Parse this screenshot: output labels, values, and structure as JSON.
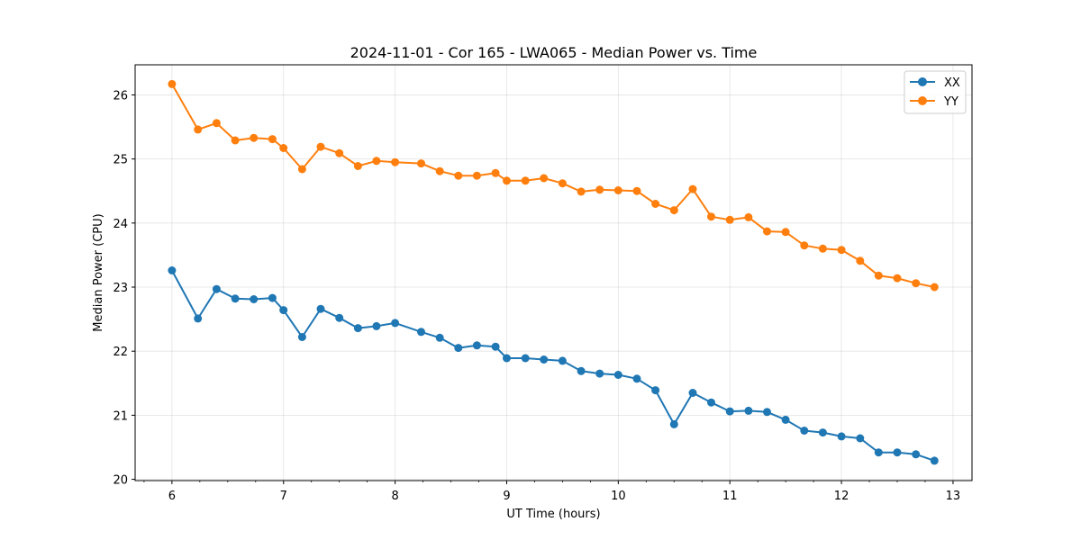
{
  "chart_data": {
    "type": "line",
    "title": "2024-11-01 - Cor 165 - LWA065 - Median Power vs. Time",
    "xlabel": "UT Time (hours)",
    "ylabel": "Median Power (CPU)",
    "xlim": [
      5.67,
      13.17
    ],
    "ylim": [
      19.98,
      26.47
    ],
    "xticks": [
      "6",
      "7",
      "8",
      "9",
      "10",
      "11",
      "12",
      "13"
    ],
    "yticks": [
      "20",
      "21",
      "22",
      "23",
      "24",
      "25",
      "26"
    ],
    "grid": true,
    "legend_position": "top-right",
    "series": [
      {
        "name": "XX",
        "color": "#1f77b4",
        "x": [
          6.0,
          6.233,
          6.4,
          6.567,
          6.733,
          6.9,
          7.0,
          7.167,
          7.333,
          7.5,
          7.667,
          7.833,
          8.0,
          8.233,
          8.4,
          8.567,
          8.733,
          8.9,
          9.0,
          9.167,
          9.333,
          9.5,
          9.667,
          9.833,
          10.0,
          10.167,
          10.333,
          10.5,
          10.667,
          10.833,
          11.0,
          11.167,
          11.333,
          11.5,
          11.667,
          11.833,
          12.0,
          12.167,
          12.333,
          12.5,
          12.667,
          12.833
        ],
        "y": [
          23.26,
          22.51,
          22.97,
          22.82,
          22.81,
          22.83,
          22.64,
          22.22,
          22.66,
          22.52,
          22.36,
          22.39,
          22.44,
          22.3,
          22.21,
          22.05,
          22.09,
          22.07,
          21.89,
          21.89,
          21.87,
          21.85,
          21.69,
          21.65,
          21.63,
          21.57,
          21.39,
          20.86,
          21.35,
          21.2,
          21.06,
          21.07,
          21.05,
          20.93,
          20.76,
          20.73,
          20.67,
          20.64,
          20.42,
          20.42,
          20.39,
          20.29
        ]
      },
      {
        "name": "YY",
        "color": "#ff7f0e",
        "x": [
          6.0,
          6.233,
          6.4,
          6.567,
          6.733,
          6.9,
          7.0,
          7.167,
          7.333,
          7.5,
          7.667,
          7.833,
          8.0,
          8.233,
          8.4,
          8.567,
          8.733,
          8.9,
          9.0,
          9.167,
          9.333,
          9.5,
          9.667,
          9.833,
          10.0,
          10.167,
          10.333,
          10.5,
          10.667,
          10.833,
          11.0,
          11.167,
          11.333,
          11.5,
          11.667,
          11.833,
          12.0,
          12.167,
          12.333,
          12.5,
          12.667,
          12.833
        ],
        "y": [
          26.17,
          25.46,
          25.56,
          25.29,
          25.33,
          25.31,
          25.17,
          24.84,
          25.19,
          25.09,
          24.89,
          24.97,
          24.95,
          24.93,
          24.81,
          24.74,
          24.74,
          24.78,
          24.66,
          24.66,
          24.7,
          24.62,
          24.49,
          24.52,
          24.51,
          24.5,
          24.3,
          24.2,
          24.53,
          24.1,
          24.05,
          24.09,
          23.87,
          23.86,
          23.65,
          23.6,
          23.58,
          23.41,
          23.18,
          23.14,
          23.06,
          23.0
        ]
      }
    ]
  }
}
